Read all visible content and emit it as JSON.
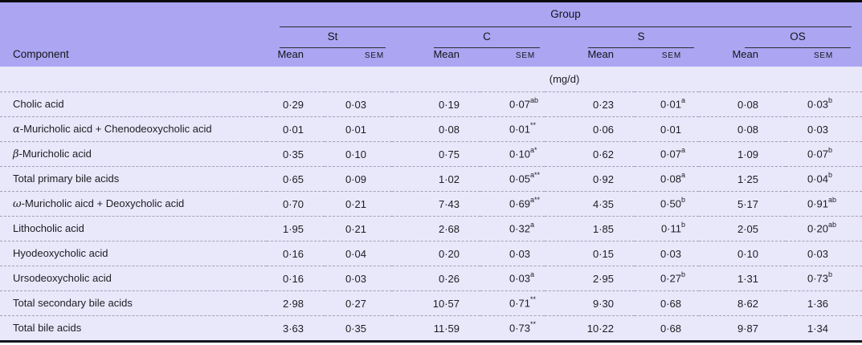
{
  "colors": {
    "header_bg": "#aca5f2",
    "row_bg": "#e9e7fa",
    "rule_dark": "#2a2a33",
    "dash": "#a5a1b8"
  },
  "table": {
    "group_header": "Group",
    "component_header": "Component",
    "unit_label": "(mg/d)",
    "mean_label": "Mean",
    "sem_label": "SEM",
    "groups": [
      {
        "label": "St"
      },
      {
        "label": "C"
      },
      {
        "label": "S"
      },
      {
        "label": "OS"
      }
    ],
    "rows": [
      {
        "component": {
          "prefix": "",
          "name": "Cholic acid"
        },
        "values": [
          {
            "v": "0·29"
          },
          {
            "v": "0·03"
          },
          {
            "v": "0·19"
          },
          {
            "v": "0·07",
            "s": "ab"
          },
          {
            "v": "0·23"
          },
          {
            "v": "0·01",
            "s": "a"
          },
          {
            "v": "0·08"
          },
          {
            "v": "0·03",
            "s": "b"
          }
        ]
      },
      {
        "component": {
          "prefix": "α",
          "name": "-Muricholic aicd + Chenodeoxycholic acid"
        },
        "values": [
          {
            "v": "0·01"
          },
          {
            "v": "0·01"
          },
          {
            "v": "0·08"
          },
          {
            "v": "0·01",
            "s": "**"
          },
          {
            "v": "0·06"
          },
          {
            "v": "0·01"
          },
          {
            "v": "0·08"
          },
          {
            "v": "0·03"
          }
        ]
      },
      {
        "component": {
          "prefix": "β",
          "name": "-Muricholic acid"
        },
        "values": [
          {
            "v": "0·35"
          },
          {
            "v": "0·10"
          },
          {
            "v": "0·75"
          },
          {
            "v": "0·10",
            "s": "a*"
          },
          {
            "v": "0·62"
          },
          {
            "v": "0·07",
            "s": "a"
          },
          {
            "v": "1·09"
          },
          {
            "v": "0·07",
            "s": "b"
          }
        ]
      },
      {
        "component": {
          "prefix": "",
          "name": "Total primary bile acids"
        },
        "values": [
          {
            "v": "0·65"
          },
          {
            "v": "0·09"
          },
          {
            "v": "1·02"
          },
          {
            "v": "0·05",
            "s": "a**"
          },
          {
            "v": "0·92"
          },
          {
            "v": "0·08",
            "s": "a"
          },
          {
            "v": "1·25"
          },
          {
            "v": "0·04",
            "s": "b"
          }
        ]
      },
      {
        "component": {
          "prefix": "ω",
          "name": "-Muricholic aicd + Deoxycholic acid"
        },
        "values": [
          {
            "v": "0·70"
          },
          {
            "v": "0·21"
          },
          {
            "v": "7·43"
          },
          {
            "v": "0·69",
            "s": "a**"
          },
          {
            "v": "4·35"
          },
          {
            "v": "0·50",
            "s": "b"
          },
          {
            "v": "5·17"
          },
          {
            "v": "0·91",
            "s": "ab"
          }
        ]
      },
      {
        "component": {
          "prefix": "",
          "name": "Lithocholic acid"
        },
        "values": [
          {
            "v": "1·95"
          },
          {
            "v": "0·21"
          },
          {
            "v": "2·68"
          },
          {
            "v": "0·32",
            "s": "a"
          },
          {
            "v": "1·85"
          },
          {
            "v": "0·11",
            "s": "b"
          },
          {
            "v": "2·05"
          },
          {
            "v": "0·20",
            "s": "ab"
          }
        ]
      },
      {
        "component": {
          "prefix": "",
          "name": "Hyodeoxycholic acid"
        },
        "values": [
          {
            "v": "0·16"
          },
          {
            "v": "0·04"
          },
          {
            "v": "0·20"
          },
          {
            "v": "0·03"
          },
          {
            "v": "0·15"
          },
          {
            "v": "0·03"
          },
          {
            "v": "0·10"
          },
          {
            "v": "0·03"
          }
        ]
      },
      {
        "component": {
          "prefix": "",
          "name": "Ursodeoxycholic acid"
        },
        "values": [
          {
            "v": "0·16"
          },
          {
            "v": "0·03"
          },
          {
            "v": "0·26"
          },
          {
            "v": "0·03",
            "s": "a"
          },
          {
            "v": "2·95"
          },
          {
            "v": "0·27",
            "s": "b"
          },
          {
            "v": "1·31"
          },
          {
            "v": "0·73",
            "s": "b"
          }
        ]
      },
      {
        "component": {
          "prefix": "",
          "name": "Total secondary bile acids"
        },
        "values": [
          {
            "v": "2·98"
          },
          {
            "v": "0·27"
          },
          {
            "v": "10·57"
          },
          {
            "v": "0·71",
            "s": "**"
          },
          {
            "v": "9·30"
          },
          {
            "v": "0·68"
          },
          {
            "v": "8·62"
          },
          {
            "v": "1·36"
          }
        ]
      },
      {
        "component": {
          "prefix": "",
          "name": "Total bile acids"
        },
        "values": [
          {
            "v": "3·63"
          },
          {
            "v": "0·35"
          },
          {
            "v": "11·59"
          },
          {
            "v": "0·73",
            "s": "**"
          },
          {
            "v": "10·22"
          },
          {
            "v": "0·68"
          },
          {
            "v": "9·87"
          },
          {
            "v": "1·34"
          }
        ]
      }
    ]
  }
}
